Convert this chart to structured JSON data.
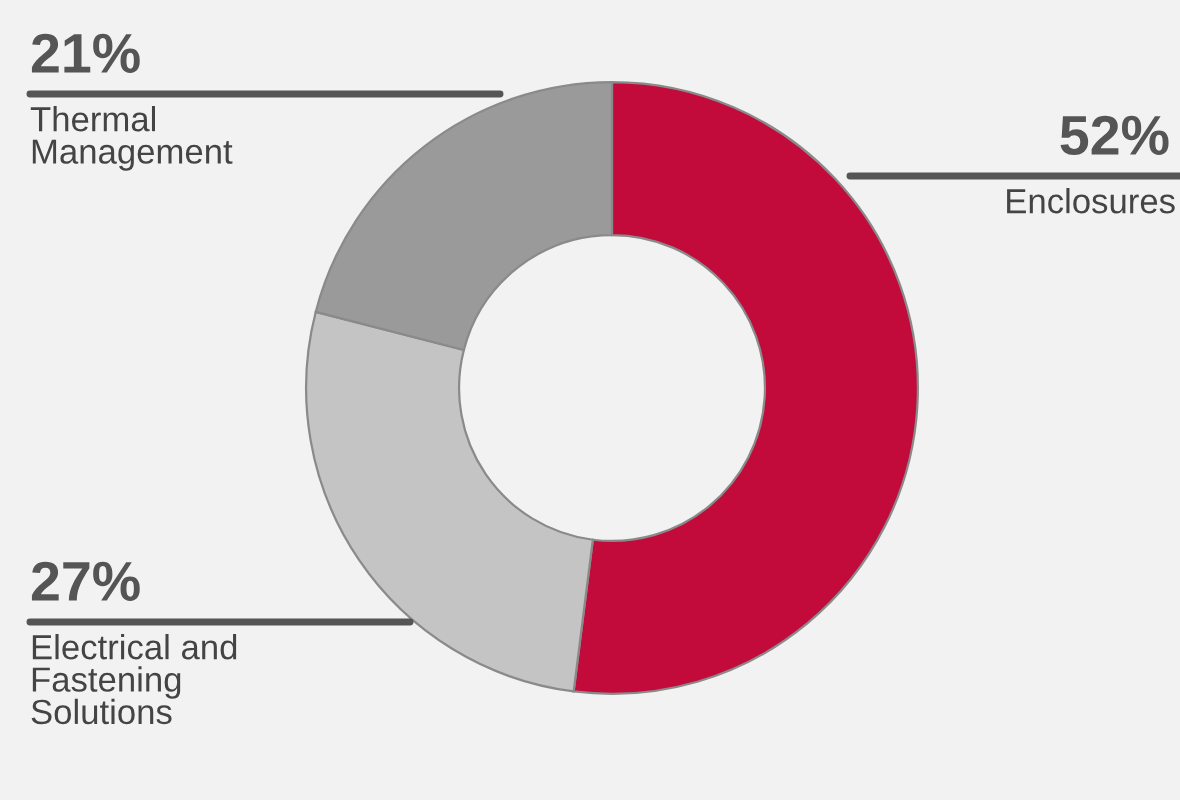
{
  "chart_data": {
    "type": "donut",
    "categories": [
      "Enclosures",
      "Electrical and\nFastening\nSolutions",
      "Thermal\nManagement"
    ],
    "values": [
      52,
      27,
      21
    ],
    "value_labels": [
      "52%",
      "27%",
      "21%"
    ],
    "colors": [
      "#c20a3b",
      "#c4c4c4",
      "#9a9a9a"
    ]
  }
}
